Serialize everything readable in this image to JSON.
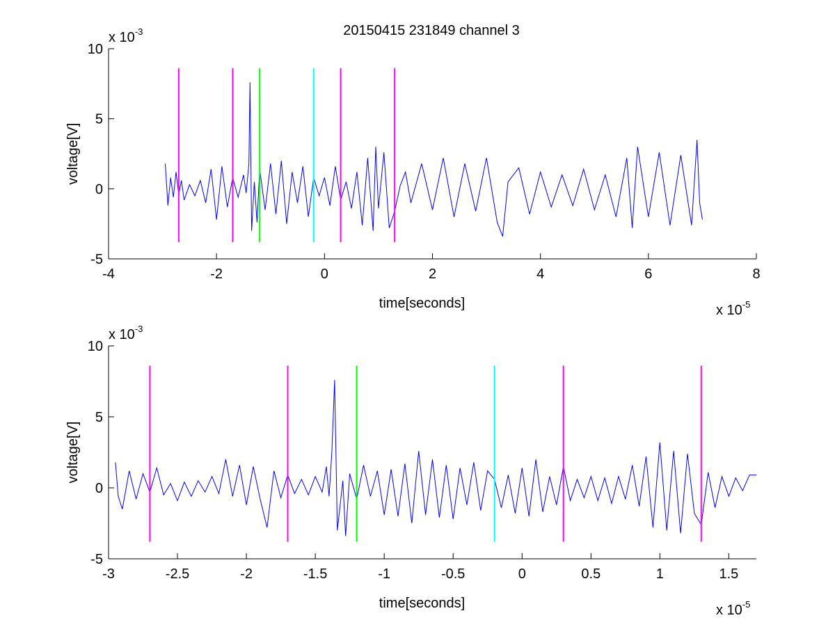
{
  "figure_title": "20150415 231849 channel 3",
  "chart_data": [
    {
      "type": "line",
      "title": "20150415 231849 channel 3",
      "xlabel": "time[seconds]",
      "ylabel": "voltage[V]",
      "xlim": [
        -4,
        8
      ],
      "ylim": [
        -5,
        10
      ],
      "x_ticks": [
        -4,
        -2,
        0,
        2,
        4,
        6,
        8
      ],
      "x_tick_labels": [
        "-4",
        "-2",
        "0",
        "2",
        "4",
        "6",
        "8"
      ],
      "y_ticks": [
        -5,
        0,
        5,
        10
      ],
      "y_tick_labels": [
        "-5",
        "0",
        "5",
        "10"
      ],
      "x_multiplier": {
        "base": "x 10",
        "exp": "-5"
      },
      "y_multiplier": {
        "base": "x 10",
        "exp": "-3"
      },
      "grid": false,
      "series": [
        {
          "color": "#0000ff",
          "x": [
            -2.95,
            -2.9,
            -2.85,
            -2.8,
            -2.75,
            -2.7,
            -2.65,
            -2.6,
            -2.5,
            -2.4,
            -2.3,
            -2.2,
            -2.1,
            -2.0,
            -1.9,
            -1.8,
            -1.7,
            -1.6,
            -1.5,
            -1.45,
            -1.4,
            -1.38,
            -1.35,
            -1.3,
            -1.25,
            -1.2,
            -1.1,
            -1.0,
            -0.9,
            -0.8,
            -0.7,
            -0.6,
            -0.5,
            -0.4,
            -0.3,
            -0.2,
            -0.1,
            0,
            0.1,
            0.2,
            0.3,
            0.4,
            0.5,
            0.6,
            0.7,
            0.8,
            0.9,
            0.95,
            1.0,
            1.1,
            1.2,
            1.3,
            1.4,
            1.5,
            1.6,
            1.8,
            2.0,
            2.2,
            2.4,
            2.6,
            2.8,
            3.0,
            3.2,
            3.3,
            3.4,
            3.6,
            3.8,
            4.0,
            4.2,
            4.4,
            4.6,
            4.8,
            5.0,
            5.2,
            5.4,
            5.6,
            5.7,
            5.8,
            6.0,
            6.2,
            6.4,
            6.6,
            6.8,
            6.9,
            6.95,
            7.0
          ],
          "y": [
            1.8,
            -1.2,
            0.8,
            -0.6,
            1.2,
            -0.4,
            0.6,
            -0.8,
            0.3,
            -0.5,
            0.6,
            -1.0,
            1.4,
            -2.2,
            1.6,
            -1.3,
            0.8,
            -0.6,
            1.0,
            -0.3,
            1.8,
            7.6,
            -3.0,
            0.5,
            -2.4,
            1.4,
            -1.5,
            1.8,
            -1.8,
            2.0,
            -2.5,
            1.2,
            -1.0,
            1.6,
            -2.0,
            0.8,
            -0.5,
            0.8,
            -1.2,
            1.6,
            -0.8,
            0.5,
            -1.4,
            1.2,
            -2.6,
            2.2,
            -3.0,
            3.0,
            -1.4,
            2.6,
            -2.8,
            -1.6,
            0.2,
            1.2,
            -1.0,
            1.8,
            -1.5,
            2.2,
            -2.0,
            1.8,
            -1.6,
            2.2,
            -2.4,
            -3.4,
            0.5,
            1.5,
            -1.8,
            1.2,
            -1.3,
            1.0,
            -1.2,
            1.4,
            -1.5,
            1.0,
            -2.0,
            2.2,
            -2.8,
            3.0,
            -2.0,
            2.6,
            -2.6,
            2.4,
            -2.6,
            3.5,
            -1.0,
            -2.2
          ]
        }
      ],
      "vertical_markers": [
        {
          "x": -2.7,
          "color": "#ff00ff"
        },
        {
          "x": -1.7,
          "color": "#ff00ff"
        },
        {
          "x": -1.2,
          "color": "#00ff00"
        },
        {
          "x": -0.2,
          "color": "#00ffff"
        },
        {
          "x": 0.3,
          "color": "#ff00ff"
        },
        {
          "x": 1.3,
          "color": "#ff00ff"
        }
      ],
      "marker_y_range": [
        -3.8,
        8.6
      ]
    },
    {
      "type": "line",
      "title": "",
      "xlabel": "time[seconds]",
      "ylabel": "voltage[V]",
      "xlim": [
        -3.0,
        1.7
      ],
      "ylim": [
        -5,
        10
      ],
      "x_ticks": [
        -3,
        -2.5,
        -2,
        -1.5,
        -1,
        -0.5,
        0,
        0.5,
        1,
        1.5
      ],
      "x_tick_labels": [
        "-3",
        "-2.5",
        "-2",
        "-1.5",
        "-1",
        "-0.5",
        "0",
        "0.5",
        "1",
        "1.5"
      ],
      "y_ticks": [
        -5,
        0,
        5,
        10
      ],
      "y_tick_labels": [
        "-5",
        "0",
        "5",
        "10"
      ],
      "x_multiplier": {
        "base": "x 10",
        "exp": "-5"
      },
      "y_multiplier": {
        "base": "x 10",
        "exp": "-3"
      },
      "grid": false,
      "series": [
        {
          "color": "#0000ff",
          "x": [
            -2.95,
            -2.93,
            -2.9,
            -2.85,
            -2.8,
            -2.75,
            -2.7,
            -2.65,
            -2.6,
            -2.55,
            -2.5,
            -2.45,
            -2.4,
            -2.35,
            -2.3,
            -2.25,
            -2.2,
            -2.15,
            -2.1,
            -2.05,
            -2.0,
            -1.95,
            -1.9,
            -1.85,
            -1.8,
            -1.75,
            -1.7,
            -1.65,
            -1.6,
            -1.55,
            -1.5,
            -1.45,
            -1.42,
            -1.4,
            -1.38,
            -1.36,
            -1.34,
            -1.3,
            -1.28,
            -1.25,
            -1.2,
            -1.15,
            -1.1,
            -1.05,
            -1.0,
            -0.95,
            -0.9,
            -0.85,
            -0.8,
            -0.75,
            -0.7,
            -0.65,
            -0.6,
            -0.55,
            -0.5,
            -0.45,
            -0.4,
            -0.35,
            -0.3,
            -0.25,
            -0.2,
            -0.15,
            -0.1,
            -0.05,
            0,
            0.05,
            0.1,
            0.15,
            0.2,
            0.25,
            0.3,
            0.35,
            0.4,
            0.45,
            0.5,
            0.55,
            0.6,
            0.65,
            0.7,
            0.75,
            0.8,
            0.85,
            0.9,
            0.95,
            1.0,
            1.05,
            1.1,
            1.15,
            1.2,
            1.25,
            1.3,
            1.35,
            1.4,
            1.45,
            1.5,
            1.55,
            1.6,
            1.65,
            1.7
          ],
          "y": [
            1.8,
            -0.6,
            -1.5,
            1.2,
            -0.8,
            1.0,
            -0.3,
            1.4,
            -0.5,
            0.3,
            -0.9,
            0.4,
            -0.6,
            0.5,
            -0.3,
            0.8,
            -0.4,
            2.0,
            -0.6,
            1.6,
            -1.2,
            1.5,
            -0.8,
            -2.8,
            1.2,
            -0.7,
            0.9,
            -0.4,
            0.6,
            -0.5,
            0.8,
            -0.3,
            1.5,
            -0.6,
            2.5,
            7.6,
            -3.0,
            0.5,
            -3.4,
            1.0,
            -0.8,
            1.6,
            -0.6,
            1.2,
            -1.9,
            1.3,
            -2.0,
            1.7,
            -2.5,
            2.6,
            -1.9,
            2.0,
            -2.1,
            1.6,
            -2.2,
            1.4,
            -1.2,
            1.8,
            -1.6,
            1.2,
            0.6,
            -1.4,
            0.9,
            -1.8,
            1.4,
            -2.0,
            2.0,
            -1.7,
            0.8,
            -1.2,
            1.5,
            -0.9,
            0.6,
            -0.7,
            0.8,
            -0.9,
            0.7,
            -1.1,
            0.8,
            -0.8,
            1.6,
            -1.3,
            2.2,
            -2.8,
            3.2,
            -3.0,
            2.6,
            -3.2,
            2.4,
            -1.8,
            -2.6,
            1.1,
            -1.4,
            0.8,
            -0.6,
            0.7,
            -0.2,
            0.9,
            0.9
          ]
        }
      ],
      "vertical_markers": [
        {
          "x": -2.7,
          "color": "#ff00ff"
        },
        {
          "x": -1.7,
          "color": "#ff00ff"
        },
        {
          "x": -1.2,
          "color": "#00ff00"
        },
        {
          "x": -0.2,
          "color": "#00ffff"
        },
        {
          "x": 0.3,
          "color": "#ff00ff"
        },
        {
          "x": 1.3,
          "color": "#ff00ff"
        }
      ],
      "marker_y_range": [
        -3.8,
        8.6
      ]
    }
  ]
}
